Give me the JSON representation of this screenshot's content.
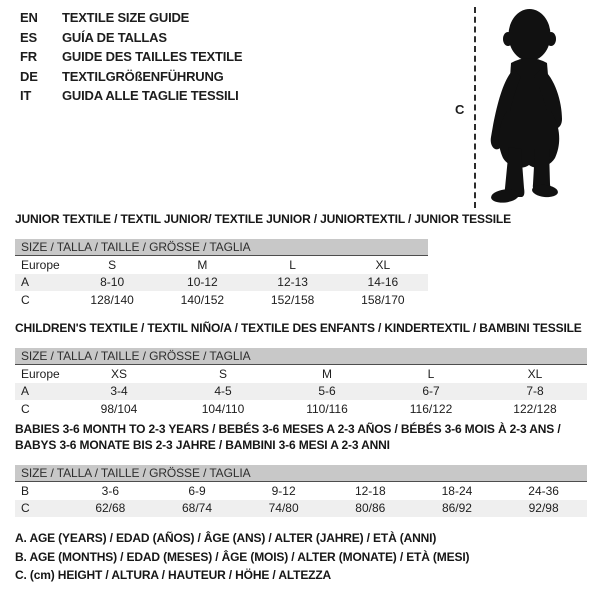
{
  "languages": [
    {
      "code": "EN",
      "title": "TEXTILE SIZE GUIDE"
    },
    {
      "code": "ES",
      "title": "GUÍA DE TALLAS"
    },
    {
      "code": "FR",
      "title": "GUIDE DES TAILLES TEXTILE"
    },
    {
      "code": "DE",
      "title": "TEXTILGRÖßENFÜHRUNG"
    },
    {
      "code": "IT",
      "title": "GUIDA ALLE TAGLIE TESSILI"
    }
  ],
  "figure": {
    "height_label": "C"
  },
  "sections": [
    {
      "title_lines": [
        "JUNIOR TEXTILE / TEXTIL JUNIOR/ TEXTILE JUNIOR / JUNIORTEXTIL / JUNIOR TESSILE"
      ],
      "size_bar": "SIZE / TALLA / TAILLE / GRÖSSE / TAGLIA",
      "header_row": {
        "label": "Europe",
        "values": [
          "S",
          "M",
          "L",
          "XL"
        ]
      },
      "rows": [
        {
          "label": "A",
          "values": [
            "8-10",
            "10-12",
            "12-13",
            "14-16"
          ],
          "shaded": true
        },
        {
          "label": "C",
          "values": [
            "128/140",
            "140/152",
            "152/158",
            "158/170"
          ],
          "shaded": false
        }
      ]
    },
    {
      "title_lines": [
        "CHILDREN'S TEXTILE / TEXTIL NIÑO/A / TEXTILE DES ENFANTS / KINDERTEXTIL / BAMBINI TESSILE"
      ],
      "size_bar": "SIZE / TALLA / TAILLE / GRÖSSE / TAGLIA",
      "header_row": {
        "label": "Europe",
        "values": [
          "XS",
          "S",
          "M",
          "L",
          "XL"
        ]
      },
      "rows": [
        {
          "label": "A",
          "values": [
            "3-4",
            "4-5",
            "5-6",
            "6-7",
            "7-8"
          ],
          "shaded": true
        },
        {
          "label": "C",
          "values": [
            "98/104",
            "104/110",
            "110/116",
            "116/122",
            "122/128"
          ],
          "shaded": false
        }
      ]
    },
    {
      "title_lines": [
        "BABIES 3-6 MONTH TO 2-3 YEARS / BEBÉS 3-6 MESES A 2-3 AÑOS / BÉBÉS 3-6 MOIS À 2-3 ANS /",
        "BABYS 3-6 MONATE BIS 2-3 JAHRE / BAMBINI 3-6 MESI A 2-3 ANNI"
      ],
      "size_bar": "SIZE / TALLA / TAILLE / GRÖSSE / TAGLIA",
      "header_row": null,
      "rows": [
        {
          "label": "B",
          "values": [
            "3-6",
            "6-9",
            "9-12",
            "12-18",
            "18-24",
            "24-36"
          ],
          "shaded": false
        },
        {
          "label": "C",
          "values": [
            "62/68",
            "68/74",
            "74/80",
            "80/86",
            "86/92",
            "92/98"
          ],
          "shaded": true
        }
      ]
    }
  ],
  "notes": [
    "A. AGE (YEARS) / EDAD (AÑOS) / ÂGE (ANS) / ALTER (JAHRE) / ETÀ (ANNI)",
    "B. AGE (MONTHS) / EDAD (MESES) / ÂGE (MOIS) / ALTER (MONATE) / ETÀ (MESI)",
    "C. (cm) HEIGHT / ALTURA / HAUTEUR / HÖHE / ALTEZZA"
  ],
  "colors": {
    "bar_bg": "#c8c8c8",
    "row_shade": "#efefef",
    "text": "#1d1d1d",
    "rule": "#4d4d4d",
    "silhouette": "#111111"
  }
}
